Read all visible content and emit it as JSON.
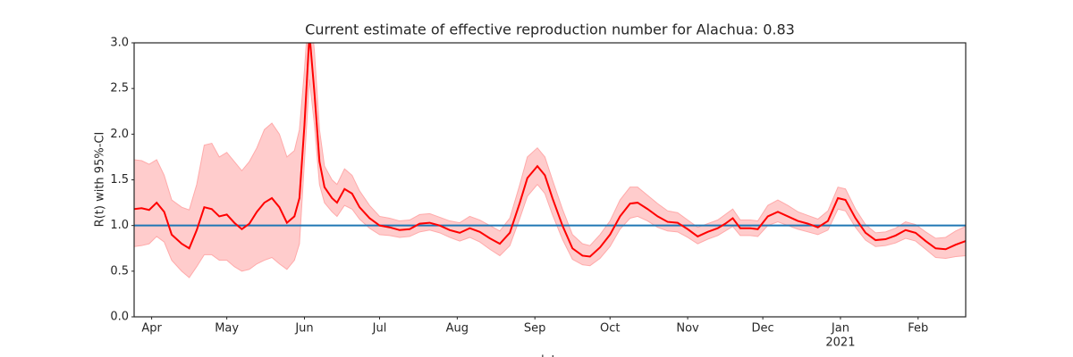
{
  "chart_data": {
    "type": "line",
    "title": "Current estimate of effective reproduction number for Alachua: 0.83",
    "ylabel": "R(t) with 95%-CI",
    "xlabel": "date",
    "xlim": [
      -7,
      325
    ],
    "ylim": [
      0,
      3
    ],
    "yticks": [
      {
        "value": 0,
        "label": "0.0"
      },
      0.5,
      {
        "value": 1,
        "label": "1.0"
      },
      1.5,
      {
        "value": 2,
        "label": "2.0"
      },
      2.5,
      {
        "value": 3,
        "label": "3.0"
      }
    ],
    "xticks": [
      {
        "value": 0,
        "label": "Apr"
      },
      {
        "value": 30,
        "label": "May"
      },
      {
        "value": 61,
        "label": "Jun"
      },
      {
        "value": 91,
        "label": "Jul"
      },
      {
        "value": 122,
        "label": "Aug"
      },
      {
        "value": 153,
        "label": "Sep"
      },
      {
        "value": 183,
        "label": "Oct"
      },
      {
        "value": 214,
        "label": "Nov"
      },
      {
        "value": 244,
        "label": "Dec"
      },
      {
        "value": 275,
        "label": "Jan",
        "sublabel": "2021"
      },
      {
        "value": 306,
        "label": "Feb"
      }
    ],
    "reference_line": {
      "value": 1,
      "color": "#1f77b4"
    },
    "x": [
      -7,
      -4,
      -1,
      2,
      5,
      8,
      12,
      15,
      18,
      21,
      24,
      27,
      30,
      33,
      36,
      39,
      42,
      45,
      48,
      51,
      54,
      57,
      59,
      61,
      63,
      65,
      67,
      69,
      72,
      74,
      77,
      80,
      83,
      87,
      91,
      95,
      99,
      103,
      107,
      111,
      115,
      119,
      123,
      127,
      131,
      135,
      139,
      143,
      147,
      150,
      154,
      157,
      160,
      164,
      168,
      172,
      175,
      179,
      183,
      187,
      191,
      194,
      198,
      202,
      206,
      210,
      214,
      218,
      222,
      226,
      229,
      232,
      235,
      239,
      242,
      246,
      250,
      254,
      258,
      262,
      266,
      270,
      274,
      277,
      281,
      285,
      289,
      293,
      297,
      301,
      305,
      309,
      313,
      317,
      321,
      325
    ],
    "series": [
      {
        "color": "#ff0000",
        "values": [
          1.18,
          1.19,
          1.17,
          1.25,
          1.15,
          0.9,
          0.8,
          0.75,
          0.95,
          1.2,
          1.18,
          1.1,
          1.12,
          1.03,
          0.96,
          1.02,
          1.15,
          1.25,
          1.3,
          1.2,
          1.03,
          1.1,
          1.3,
          2.1,
          3.1,
          2.45,
          1.7,
          1.42,
          1.3,
          1.25,
          1.4,
          1.35,
          1.2,
          1.08,
          1.0,
          0.98,
          0.95,
          0.96,
          1.02,
          1.03,
          1.0,
          0.95,
          0.92,
          0.97,
          0.93,
          0.86,
          0.8,
          0.92,
          1.25,
          1.52,
          1.65,
          1.55,
          1.3,
          1.0,
          0.75,
          0.67,
          0.66,
          0.76,
          0.9,
          1.1,
          1.24,
          1.25,
          1.18,
          1.1,
          1.04,
          1.03,
          0.96,
          0.88,
          0.93,
          0.97,
          1.02,
          1.08,
          0.97,
          0.97,
          0.96,
          1.1,
          1.15,
          1.1,
          1.05,
          1.02,
          0.98,
          1.05,
          1.3,
          1.28,
          1.08,
          0.92,
          0.84,
          0.85,
          0.89,
          0.95,
          0.92,
          0.83,
          0.75,
          0.74,
          0.79,
          0.83
        ]
      }
    ],
    "band": {
      "color": "#ffcccc",
      "lower": [
        0.77,
        0.78,
        0.8,
        0.88,
        0.82,
        0.62,
        0.5,
        0.43,
        0.55,
        0.68,
        0.68,
        0.62,
        0.62,
        0.55,
        0.5,
        0.52,
        0.58,
        0.62,
        0.65,
        0.58,
        0.52,
        0.62,
        0.8,
        1.7,
        2.6,
        2.1,
        1.45,
        1.25,
        1.15,
        1.1,
        1.22,
        1.18,
        1.07,
        0.97,
        0.9,
        0.89,
        0.87,
        0.88,
        0.93,
        0.95,
        0.92,
        0.87,
        0.83,
        0.87,
        0.82,
        0.74,
        0.67,
        0.78,
        1.08,
        1.32,
        1.45,
        1.35,
        1.12,
        0.85,
        0.63,
        0.57,
        0.56,
        0.64,
        0.77,
        0.96,
        1.08,
        1.1,
        1.05,
        0.98,
        0.94,
        0.93,
        0.87,
        0.8,
        0.85,
        0.89,
        0.94,
        0.99,
        0.89,
        0.89,
        0.88,
        1.0,
        1.04,
        1.0,
        0.96,
        0.93,
        0.9,
        0.95,
        1.18,
        1.16,
        0.98,
        0.84,
        0.77,
        0.78,
        0.81,
        0.86,
        0.83,
        0.74,
        0.65,
        0.64,
        0.66,
        0.67
      ],
      "upper": [
        1.72,
        1.71,
        1.67,
        1.72,
        1.55,
        1.28,
        1.2,
        1.17,
        1.45,
        1.88,
        1.9,
        1.75,
        1.8,
        1.7,
        1.6,
        1.7,
        1.85,
        2.05,
        2.12,
        2.0,
        1.75,
        1.82,
        2.05,
        2.7,
        3.5,
        2.9,
        2.05,
        1.65,
        1.5,
        1.45,
        1.62,
        1.55,
        1.38,
        1.22,
        1.1,
        1.08,
        1.05,
        1.06,
        1.12,
        1.13,
        1.09,
        1.05,
        1.03,
        1.1,
        1.06,
        1.0,
        0.94,
        1.08,
        1.45,
        1.75,
        1.85,
        1.75,
        1.5,
        1.18,
        0.9,
        0.8,
        0.78,
        0.9,
        1.05,
        1.28,
        1.42,
        1.42,
        1.33,
        1.24,
        1.16,
        1.14,
        1.06,
        0.98,
        1.02,
        1.06,
        1.12,
        1.18,
        1.06,
        1.06,
        1.05,
        1.22,
        1.28,
        1.22,
        1.15,
        1.11,
        1.07,
        1.16,
        1.42,
        1.4,
        1.18,
        1.01,
        0.92,
        0.93,
        0.97,
        1.04,
        1.01,
        0.93,
        0.86,
        0.87,
        0.94,
        0.99
      ]
    }
  }
}
